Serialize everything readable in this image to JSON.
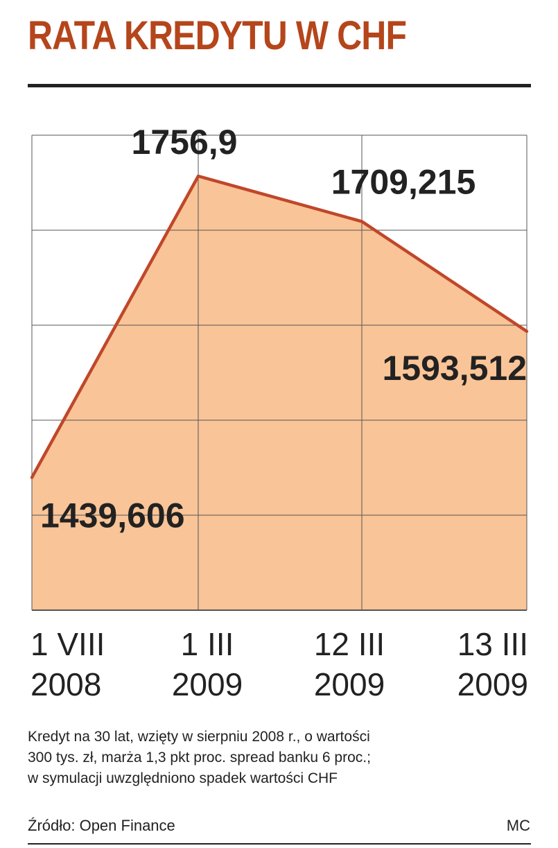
{
  "title": "RATA KREDYTU W CHF",
  "note_lines": [
    "Kredyt na 30 lat, wzięty w sierpniu 2008 r., o wartości",
    "300 tys. zł, marża 1,3 pkt proc. spread banku 6 proc.;",
    "w symulacji uwzględniono spadek wartości CHF"
  ],
  "source": "Źródło: Open Finance",
  "author": "MC",
  "colors": {
    "title": "#b5451b",
    "line": "#c0472a",
    "fill": "#f9c497",
    "grid": "#555555"
  },
  "chart_data": {
    "type": "area",
    "categories": [
      [
        "1 VIII",
        "2008"
      ],
      [
        "1 III",
        "2009"
      ],
      [
        "12 III",
        "2009"
      ],
      [
        "13 III",
        "2009"
      ]
    ],
    "values": [
      1439.606,
      1756.9,
      1709.215,
      1593.512
    ],
    "data_labels": [
      "1439,606",
      "1756,9",
      "1709,215",
      "1593,512"
    ],
    "ylim": [
      1300,
      1800
    ],
    "grid": true,
    "title": "RATA KREDYTU W CHF"
  }
}
